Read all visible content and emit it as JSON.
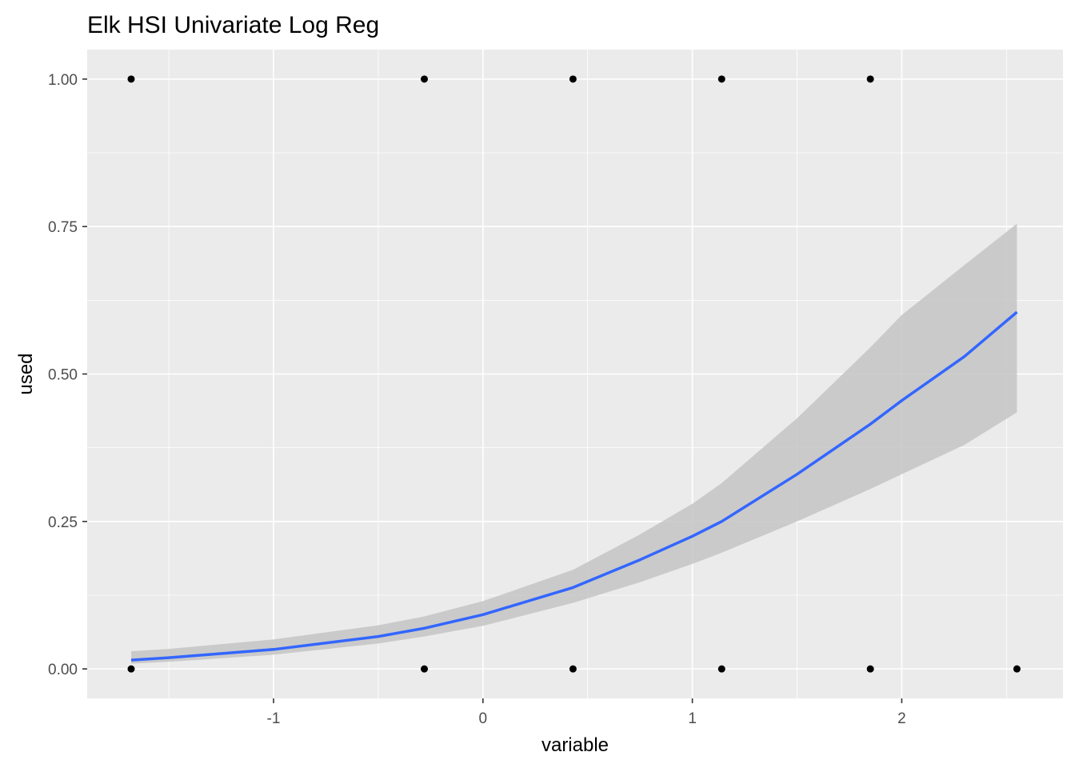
{
  "chart_data": {
    "type": "scatter",
    "title": "Elk HSI Univariate Log Reg",
    "xlabel": "variable",
    "ylabel": "used",
    "xlim": [
      -1.89,
      2.77
    ],
    "ylim": [
      -0.05,
      1.05
    ],
    "x_ticks": [
      -1,
      0,
      1,
      2
    ],
    "x_tick_labels": [
      "-1",
      "0",
      "1",
      "2"
    ],
    "y_ticks": [
      0,
      0.25,
      0.5,
      0.75,
      1
    ],
    "y_tick_labels": [
      "0.00",
      "0.25",
      "0.50",
      "0.75",
      "1.00"
    ],
    "grid": true,
    "colors": {
      "panel": "#ebebeb",
      "grid": "#ffffff",
      "points": "#000000",
      "fit_line": "#3366ff",
      "confidence_band": "#c4c4c4"
    },
    "points": [
      {
        "x": -1.68,
        "y": 1
      },
      {
        "x": -0.28,
        "y": 1
      },
      {
        "x": 0.43,
        "y": 1
      },
      {
        "x": 1.14,
        "y": 1
      },
      {
        "x": 1.85,
        "y": 1
      },
      {
        "x": -1.68,
        "y": 0
      },
      {
        "x": -0.28,
        "y": 0
      },
      {
        "x": 0.43,
        "y": 0
      },
      {
        "x": 1.14,
        "y": 0
      },
      {
        "x": 1.85,
        "y": 0
      },
      {
        "x": 2.55,
        "y": 0
      }
    ],
    "fit": {
      "x": [
        -1.68,
        -1.5,
        -1.0,
        -0.5,
        -0.28,
        0.0,
        0.43,
        0.75,
        1.0,
        1.14,
        1.5,
        1.85,
        2.0,
        2.3,
        2.55
      ],
      "y": [
        0.015,
        0.019,
        0.033,
        0.055,
        0.069,
        0.092,
        0.138,
        0.185,
        0.225,
        0.25,
        0.33,
        0.415,
        0.455,
        0.53,
        0.605
      ],
      "lower": [
        0.009,
        0.012,
        0.024,
        0.043,
        0.055,
        0.073,
        0.112,
        0.147,
        0.178,
        0.197,
        0.25,
        0.305,
        0.33,
        0.38,
        0.435
      ],
      "upper": [
        0.03,
        0.034,
        0.05,
        0.074,
        0.089,
        0.115,
        0.168,
        0.228,
        0.28,
        0.315,
        0.425,
        0.545,
        0.6,
        0.685,
        0.755
      ]
    }
  }
}
